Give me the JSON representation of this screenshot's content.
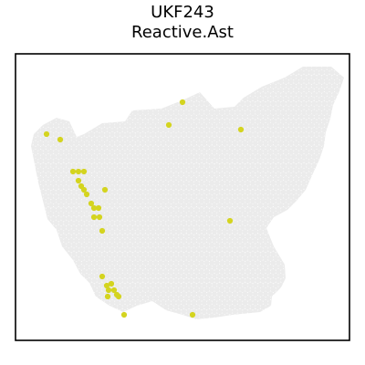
{
  "chart_data": {
    "type": "scatter",
    "title": "UKF243",
    "subtitle": "Reactive.Ast",
    "xlabel": "",
    "ylabel": "",
    "axes_ticks": false,
    "grid": false,
    "legend": "none",
    "colors": {
      "background_spot": "#ebebeb",
      "highlight_spot": "#d4d41f",
      "frame": "#000000"
    },
    "tissue_outline": [
      [
        37,
        147
      ],
      [
        47,
        137
      ],
      [
        62,
        129
      ],
      [
        76,
        133
      ],
      [
        84,
        150
      ],
      [
        92,
        147
      ],
      [
        112,
        135
      ],
      [
        137,
        133
      ],
      [
        145,
        121
      ],
      [
        177,
        119
      ],
      [
        202,
        109
      ],
      [
        219,
        101
      ],
      [
        235,
        119
      ],
      [
        257,
        117
      ],
      [
        267,
        107
      ],
      [
        287,
        95
      ],
      [
        312,
        85
      ],
      [
        332,
        73
      ],
      [
        363,
        73
      ],
      [
        377,
        85
      ],
      [
        372,
        100
      ],
      [
        365,
        115
      ],
      [
        362,
        130
      ],
      [
        357,
        145
      ],
      [
        355,
        160
      ],
      [
        350,
        175
      ],
      [
        343,
        190
      ],
      [
        335,
        208
      ],
      [
        325,
        220
      ],
      [
        315,
        230
      ],
      [
        300,
        238
      ],
      [
        292,
        250
      ],
      [
        300,
        270
      ],
      [
        312,
        290
      ],
      [
        313,
        305
      ],
      [
        308,
        315
      ],
      [
        298,
        325
      ],
      [
        297,
        335
      ],
      [
        285,
        342
      ],
      [
        255,
        345
      ],
      [
        235,
        348
      ],
      [
        215,
        350
      ],
      [
        200,
        345
      ],
      [
        182,
        340
      ],
      [
        167,
        330
      ],
      [
        150,
        335
      ],
      [
        135,
        342
      ],
      [
        120,
        335
      ],
      [
        105,
        325
      ],
      [
        98,
        310
      ],
      [
        88,
        300
      ],
      [
        80,
        285
      ],
      [
        68,
        270
      ],
      [
        62,
        252
      ],
      [
        52,
        240
      ],
      [
        47,
        220
      ],
      [
        42,
        200
      ],
      [
        38,
        180
      ],
      [
        34,
        160
      ]
    ],
    "highlighted_spots": [
      [
        200,
        112
      ],
      [
        185,
        137
      ],
      [
        264,
        142
      ],
      [
        51,
        147
      ],
      [
        66,
        153
      ],
      [
        80,
        188
      ],
      [
        86,
        188
      ],
      [
        92,
        188
      ],
      [
        86,
        198
      ],
      [
        89,
        204
      ],
      [
        92,
        208
      ],
      [
        95,
        213
      ],
      [
        115,
        208
      ],
      [
        100,
        223
      ],
      [
        103,
        228
      ],
      [
        108,
        228
      ],
      [
        103,
        238
      ],
      [
        109,
        238
      ],
      [
        112,
        253
      ],
      [
        252,
        242
      ],
      [
        112,
        303
      ],
      [
        117,
        313
      ],
      [
        122,
        311
      ],
      [
        119,
        318
      ],
      [
        125,
        318
      ],
      [
        128,
        323
      ],
      [
        118,
        325
      ],
      [
        130,
        325
      ],
      [
        136,
        345
      ],
      [
        211,
        345
      ]
    ],
    "xlim": [
      17,
      383
    ],
    "ylim": [
      58,
      373
    ]
  }
}
